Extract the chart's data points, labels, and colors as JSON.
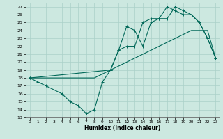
{
  "title": "",
  "xlabel": "Humidex (Indice chaleur)",
  "bg_color": "#cce8e0",
  "grid_color": "#aad0c8",
  "line_color": "#006858",
  "xlim": [
    -0.5,
    23.5
  ],
  "ylim": [
    13,
    27.5
  ],
  "xticks": [
    0,
    1,
    2,
    3,
    4,
    5,
    6,
    7,
    8,
    9,
    10,
    11,
    12,
    13,
    14,
    15,
    16,
    17,
    18,
    19,
    20,
    21,
    22,
    23
  ],
  "yticks": [
    13,
    14,
    15,
    16,
    17,
    18,
    19,
    20,
    21,
    22,
    23,
    24,
    25,
    26,
    27
  ],
  "line1_x": [
    0,
    1,
    2,
    3,
    4,
    5,
    6,
    7,
    8,
    9,
    10,
    11,
    12,
    13,
    14,
    15,
    16,
    17,
    18,
    19,
    20,
    21,
    22,
    23
  ],
  "line1_y": [
    18,
    17.5,
    17,
    16.5,
    16,
    15,
    14.5,
    13.5,
    14,
    17.5,
    19,
    21.5,
    24.5,
    24,
    22,
    25,
    25.5,
    25.5,
    27,
    26.5,
    26,
    25,
    23,
    20.5
  ],
  "line2_x": [
    0,
    1,
    2,
    3,
    4,
    5,
    6,
    7,
    8,
    9,
    10,
    11,
    12,
    13,
    14,
    15,
    16,
    17,
    18,
    19,
    20,
    21,
    22,
    23
  ],
  "line2_y": [
    18,
    18,
    18,
    18,
    18,
    18,
    18,
    18,
    18,
    18.5,
    19,
    19.5,
    20,
    20.5,
    21,
    21.5,
    22,
    22.5,
    23,
    23.5,
    24,
    24,
    24,
    20.5
  ],
  "line3_x": [
    0,
    10,
    11,
    12,
    13,
    14,
    15,
    16,
    17,
    18,
    19,
    20,
    21,
    22,
    23
  ],
  "line3_y": [
    18,
    19,
    21.5,
    22,
    22,
    25,
    25.5,
    25.5,
    27,
    26.5,
    26,
    26,
    25,
    23,
    20.5
  ]
}
